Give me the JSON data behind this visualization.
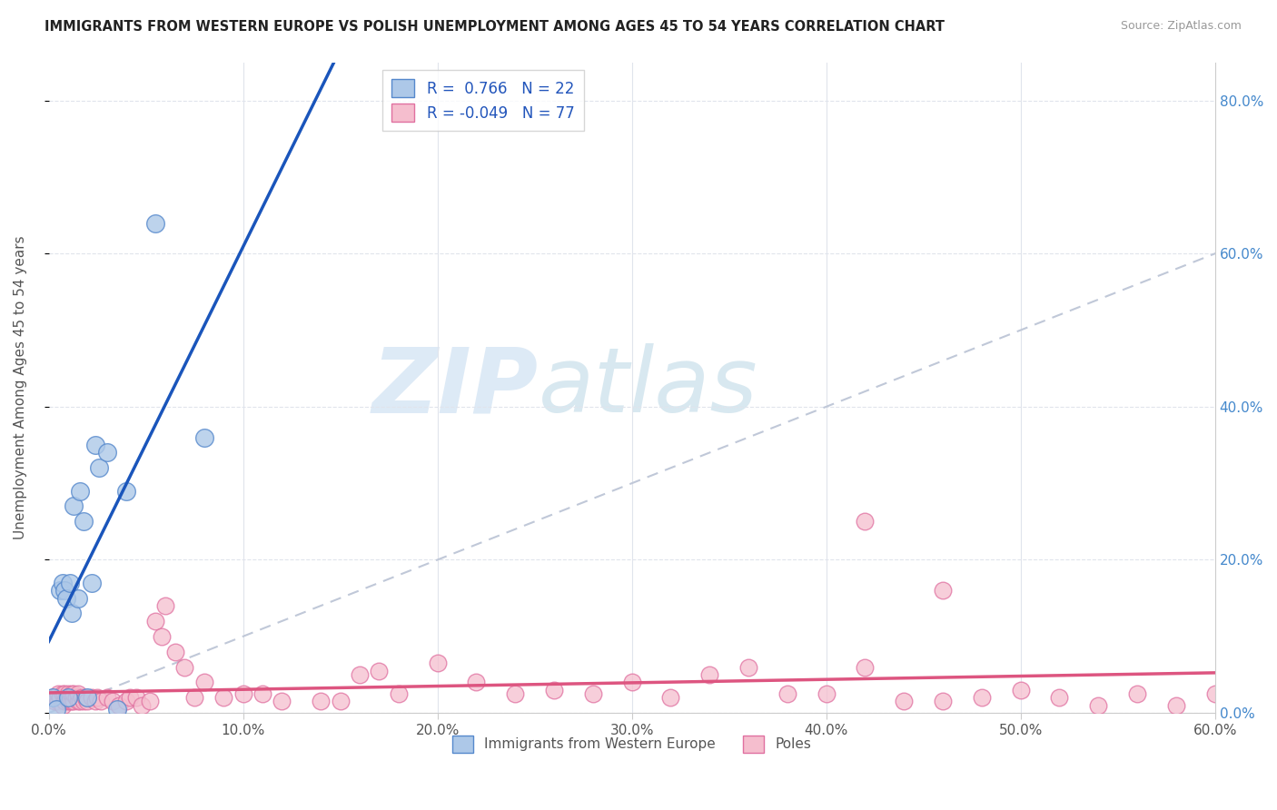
{
  "title": "IMMIGRANTS FROM WESTERN EUROPE VS POLISH UNEMPLOYMENT AMONG AGES 45 TO 54 YEARS CORRELATION CHART",
  "source": "Source: ZipAtlas.com",
  "ylabel": "Unemployment Among Ages 45 to 54 years",
  "xlim": [
    0.0,
    0.6
  ],
  "ylim": [
    0.0,
    0.85
  ],
  "xticklabels": [
    "0.0%",
    "10.0%",
    "20.0%",
    "30.0%",
    "40.0%",
    "50.0%",
    "60.0%"
  ],
  "xtick_vals": [
    0.0,
    0.1,
    0.2,
    0.3,
    0.4,
    0.5,
    0.6
  ],
  "ytick_vals": [
    0.0,
    0.2,
    0.4,
    0.6,
    0.8
  ],
  "yticklabels_right": [
    "0.0%",
    "20.0%",
    "40.0%",
    "60.0%",
    "80.0%"
  ],
  "blue_R": 0.766,
  "blue_N": 22,
  "pink_R": -0.049,
  "pink_N": 77,
  "blue_color": "#adc8e8",
  "blue_edge": "#5588cc",
  "pink_color": "#f5bece",
  "pink_edge": "#e070a0",
  "blue_line_color": "#1a55bb",
  "pink_line_color": "#dd5580",
  "diagonal_color": "#c0c8d8",
  "watermark_color": "#dce8f4",
  "blue_x": [
    0.002,
    0.004,
    0.006,
    0.007,
    0.008,
    0.009,
    0.01,
    0.011,
    0.012,
    0.013,
    0.015,
    0.016,
    0.018,
    0.02,
    0.022,
    0.024,
    0.026,
    0.03,
    0.035,
    0.04,
    0.055,
    0.08
  ],
  "blue_y": [
    0.02,
    0.005,
    0.16,
    0.17,
    0.16,
    0.15,
    0.02,
    0.17,
    0.13,
    0.27,
    0.15,
    0.29,
    0.25,
    0.02,
    0.17,
    0.35,
    0.32,
    0.34,
    0.005,
    0.29,
    0.64,
    0.36
  ],
  "pink_x": [
    0.002,
    0.003,
    0.004,
    0.005,
    0.005,
    0.006,
    0.007,
    0.007,
    0.008,
    0.008,
    0.009,
    0.01,
    0.01,
    0.011,
    0.012,
    0.012,
    0.013,
    0.013,
    0.014,
    0.015,
    0.015,
    0.016,
    0.017,
    0.018,
    0.019,
    0.02,
    0.022,
    0.024,
    0.025,
    0.027,
    0.03,
    0.033,
    0.036,
    0.04,
    0.042,
    0.045,
    0.048,
    0.052,
    0.055,
    0.058,
    0.06,
    0.065,
    0.07,
    0.075,
    0.08,
    0.09,
    0.1,
    0.11,
    0.12,
    0.14,
    0.15,
    0.16,
    0.17,
    0.18,
    0.2,
    0.22,
    0.24,
    0.26,
    0.28,
    0.3,
    0.32,
    0.34,
    0.36,
    0.38,
    0.4,
    0.42,
    0.44,
    0.46,
    0.48,
    0.5,
    0.52,
    0.54,
    0.56,
    0.58,
    0.6,
    0.42,
    0.46
  ],
  "pink_y": [
    0.02,
    0.015,
    0.02,
    0.015,
    0.025,
    0.02,
    0.01,
    0.025,
    0.015,
    0.025,
    0.02,
    0.015,
    0.025,
    0.015,
    0.015,
    0.025,
    0.015,
    0.025,
    0.02,
    0.015,
    0.025,
    0.015,
    0.02,
    0.015,
    0.02,
    0.015,
    0.02,
    0.015,
    0.02,
    0.015,
    0.02,
    0.015,
    0.01,
    0.015,
    0.02,
    0.02,
    0.01,
    0.015,
    0.12,
    0.1,
    0.14,
    0.08,
    0.06,
    0.02,
    0.04,
    0.02,
    0.025,
    0.025,
    0.015,
    0.015,
    0.015,
    0.05,
    0.055,
    0.025,
    0.065,
    0.04,
    0.025,
    0.03,
    0.025,
    0.04,
    0.02,
    0.05,
    0.06,
    0.025,
    0.025,
    0.06,
    0.015,
    0.015,
    0.02,
    0.03,
    0.02,
    0.01,
    0.025,
    0.01,
    0.025,
    0.25,
    0.16
  ],
  "legend_label1": "Immigrants from Western Europe",
  "legend_label2": "Poles",
  "background_color": "#ffffff",
  "grid_color": "#e0e4ec"
}
